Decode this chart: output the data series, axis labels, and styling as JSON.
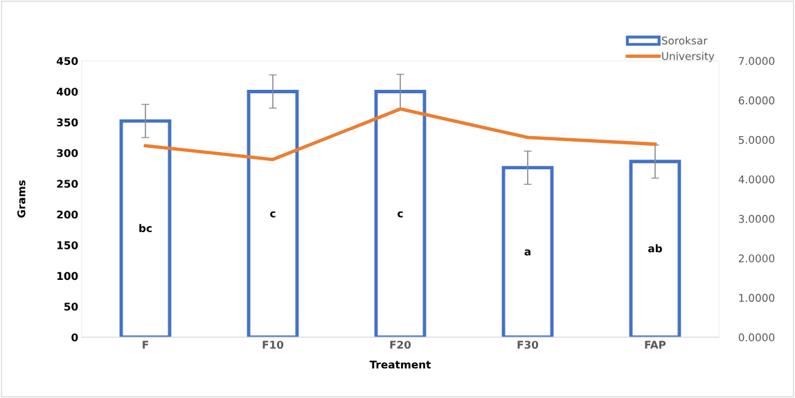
{
  "chart_data": {
    "type": "bar",
    "xlabel": "Treatment",
    "ylabel": "Grams",
    "categories": [
      "F",
      "F10",
      "F20",
      "F30",
      "FAP"
    ],
    "series": [
      {
        "name": "Soroksar",
        "color": "#4472c4",
        "values": [
          352,
          400,
          400,
          276,
          286
        ],
        "errors": [
          27,
          27,
          28,
          27,
          27
        ]
      },
      {
        "name": "University",
        "type": "line",
        "axis": "y2",
        "color": "#ed7d31",
        "values": [
          4.85,
          4.5,
          5.78,
          5.06,
          4.89
        ]
      }
    ],
    "ylim": [
      0,
      450
    ],
    "yticks": [
      0,
      50,
      100,
      150,
      200,
      250,
      300,
      350,
      400,
      450
    ],
    "y2lim": [
      0,
      7
    ],
    "y2ticks": [
      {
        "value": 0,
        "label": "0.0000"
      },
      {
        "value": 1,
        "label": "1.0000"
      },
      {
        "value": 2,
        "label": "2.0000"
      },
      {
        "value": 3,
        "label": "3.0000"
      },
      {
        "value": 4,
        "label": "4.0000"
      },
      {
        "value": 5,
        "label": "5.0000"
      },
      {
        "value": 6,
        "label": "6.0000"
      },
      {
        "value": 7,
        "label": "7.0000"
      }
    ],
    "annotations": [
      "bc",
      "c",
      "c",
      "a",
      "ab"
    ],
    "grid": false,
    "legend": "top right",
    "marker": "none",
    "line_style": "solid"
  }
}
